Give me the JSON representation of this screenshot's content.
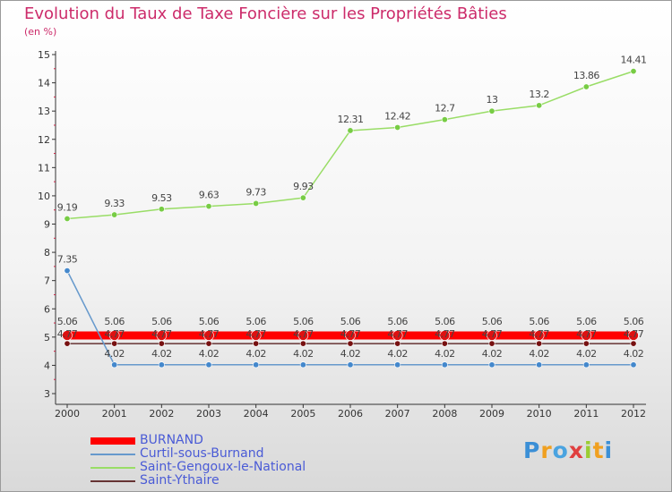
{
  "header": {
    "title": "Evolution du Taux de Taxe Foncière sur les Propriétés Bâties",
    "unit": "(en %)"
  },
  "logo": {
    "text": "Proxiti",
    "letters": [
      "P",
      "r",
      "o",
      "x",
      "i",
      "t",
      "i"
    ]
  },
  "chart_data": {
    "type": "line",
    "title": "Evolution du Taux de Taxe Foncière sur les Propriétés Bâties",
    "ylabel": "(en %)",
    "xlabel": "",
    "ylim": [
      3,
      15
    ],
    "yticks": [
      3,
      4,
      5,
      6,
      7,
      8,
      9,
      10,
      11,
      12,
      13,
      14,
      15
    ],
    "grid": false,
    "categories": [
      "2000",
      "2001",
      "2002",
      "2003",
      "2004",
      "2005",
      "2006",
      "2007",
      "2008",
      "2009",
      "2010",
      "2011",
      "2012"
    ],
    "series": [
      {
        "name": "BURNAND",
        "color": "#ff0000",
        "marker": "#dd1111",
        "values": [
          5.06,
          5.06,
          5.06,
          5.06,
          5.06,
          5.06,
          5.06,
          5.06,
          5.06,
          5.06,
          5.06,
          5.06,
          5.06
        ],
        "labels": [
          "5.06",
          "5.06",
          "5.06",
          "5.06",
          "5.06",
          "5.06",
          "5.06",
          "5.06",
          "5.06",
          "5.06",
          "5.06",
          "5.06",
          "5.06"
        ]
      },
      {
        "name": "Curtil-sous-Burnand",
        "color": "#6699cc",
        "marker": "#4488cc",
        "values": [
          7.35,
          4.02,
          4.02,
          4.02,
          4.02,
          4.02,
          4.02,
          4.02,
          4.02,
          4.02,
          4.02,
          4.02,
          4.02
        ],
        "labels": [
          "7.35",
          "4.02",
          "4.02",
          "4.02",
          "4.02",
          "4.02",
          "4.02",
          "4.02",
          "4.02",
          "4.02",
          "4.02",
          "4.02",
          "4.02"
        ]
      },
      {
        "name": "Saint-Gengoux-le-National",
        "color": "#99dd66",
        "marker": "#77cc44",
        "values": [
          9.19,
          9.33,
          9.53,
          9.63,
          9.73,
          9.93,
          12.31,
          12.42,
          12.7,
          13,
          13.2,
          13.86,
          14.41
        ],
        "labels": [
          "9.19",
          "9.33",
          "9.53",
          "9.63",
          "9.73",
          "9.93",
          "12.31",
          "12.42",
          "12.7",
          "13",
          "13.2",
          "13.86",
          "14.41"
        ]
      },
      {
        "name": "Saint-Ythaire",
        "color": "#663333",
        "marker": "#771111",
        "values": [
          4.77,
          4.77,
          4.77,
          4.77,
          4.77,
          4.77,
          4.77,
          4.77,
          4.77,
          4.77,
          4.77,
          4.77,
          4.77
        ],
        "labels": [
          "4.77",
          "4.77",
          "4.77",
          "4.77",
          "4.77",
          "4.77",
          "4.77",
          "4.77",
          "4.77",
          "4.77",
          "4.77",
          "4.77",
          "4.77"
        ]
      }
    ]
  }
}
